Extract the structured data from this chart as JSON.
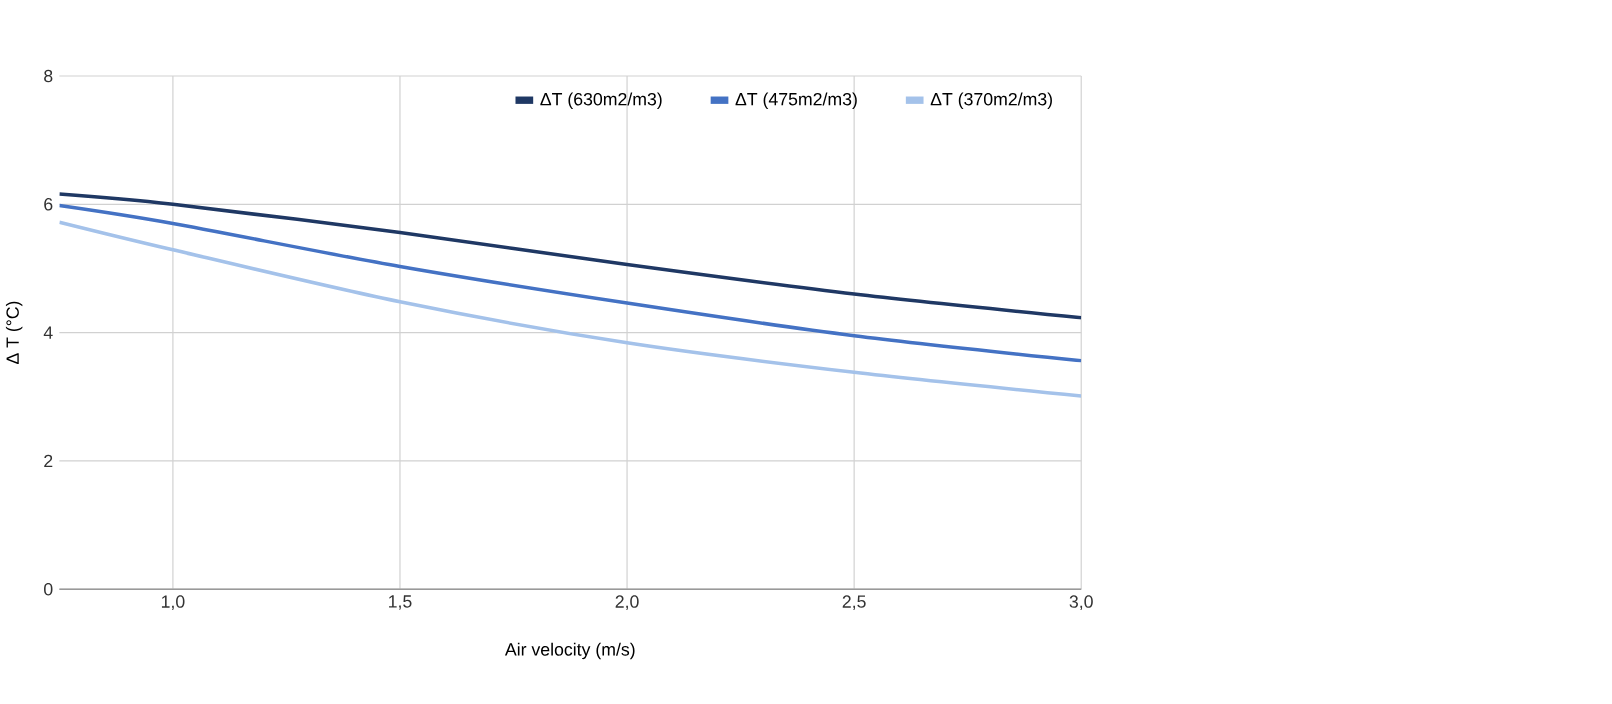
{
  "chart_data": {
    "type": "line",
    "xlabel": "Air velocity (m/s)",
    "ylabel": "Δ T (°C)",
    "x": [
      0.75,
      1.0,
      1.5,
      2.0,
      2.5,
      3.0
    ],
    "series": [
      {
        "name": "ΔT (630m2/m3)",
        "color": "#1f3864",
        "values": [
          6.16,
          6.0,
          5.56,
          5.06,
          4.6,
          4.23
        ]
      },
      {
        "name": "ΔT (475m2/m3)",
        "color": "#4472c4",
        "values": [
          5.98,
          5.7,
          5.03,
          4.46,
          3.95,
          3.56
        ]
      },
      {
        "name": "ΔT (370m2/m3)",
        "color": "#a4c2ea",
        "values": [
          5.72,
          5.29,
          4.48,
          3.84,
          3.38,
          3.01
        ]
      }
    ],
    "xlim": [
      0.75,
      3.0
    ],
    "ylim": [
      0,
      8
    ],
    "xticks": [
      {
        "value": 1.0,
        "label": "1,0"
      },
      {
        "value": 1.5,
        "label": "1,5"
      },
      {
        "value": 2.0,
        "label": "2,0"
      },
      {
        "value": 2.5,
        "label": "2,5"
      },
      {
        "value": 3.0,
        "label": "3,0"
      }
    ],
    "yticks": [
      0,
      2,
      4,
      6,
      8
    ],
    "grid": true,
    "legend": "top",
    "marker": "none",
    "line_style": "solid"
  }
}
